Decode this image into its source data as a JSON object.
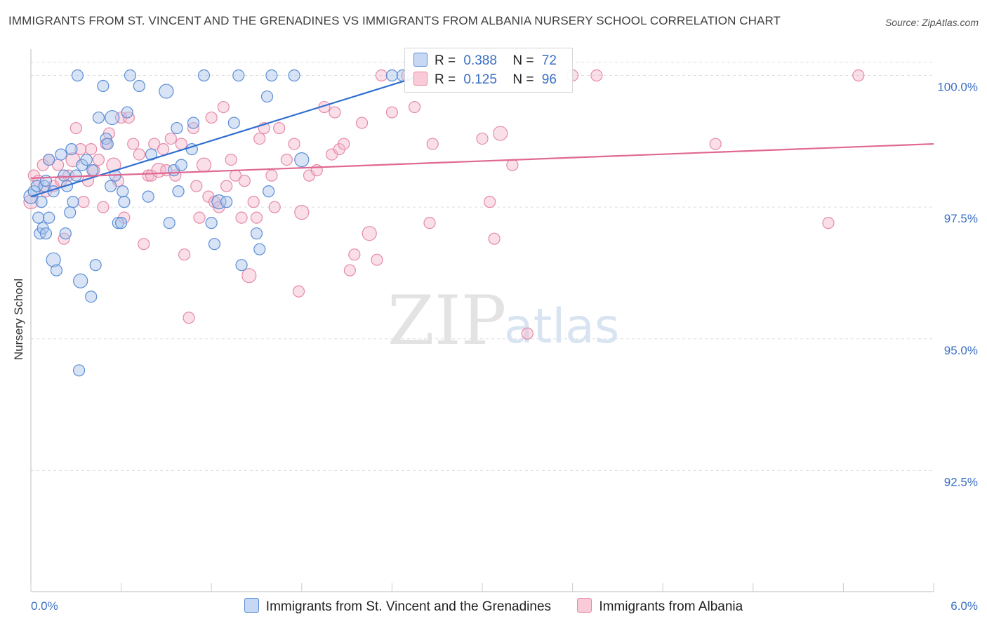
{
  "header": {
    "title": "IMMIGRANTS FROM ST. VINCENT AND THE GRENADINES VS IMMIGRANTS FROM ALBANIA NURSERY SCHOOL CORRELATION CHART",
    "source": "Source: ZipAtlas.com"
  },
  "watermark": {
    "zip": "ZIP",
    "atlas": "atlas"
  },
  "colors": {
    "blue_fill": "#a9c4ec",
    "blue_stroke": "#5b8dd6",
    "blue_line": "#2f6fd0",
    "pink_fill": "#f5b8cc",
    "pink_stroke": "#e58aa8",
    "pink_line": "#e06892",
    "tick_text": "#3a6fc4",
    "grid": "#dddddd"
  },
  "legend_top": {
    "rows": [
      {
        "r_label": "R =",
        "r_value": "0.388",
        "n_label": "N =",
        "n_value": "72"
      },
      {
        "r_label": "R =",
        "r_value": "0.125",
        "n_label": "N =",
        "n_value": "96"
      }
    ]
  },
  "chart_data": {
    "type": "scatter",
    "title": "IMMIGRANTS FROM ST. VINCENT AND THE GRENADINES VS IMMIGRANTS FROM ALBANIA NURSERY SCHOOL CORRELATION CHART",
    "xlabel": "",
    "ylabel": "Nursery School",
    "xlim": [
      0,
      6
    ],
    "ylim": [
      90.2,
      100.5
    ],
    "x_tick_labels": [
      "0.0%",
      "6.0%"
    ],
    "y_ticks": [
      92.5,
      95.0,
      97.5,
      100.0
    ],
    "y_tick_labels": [
      "92.5%",
      "95.0%",
      "97.5%",
      "100.0%"
    ],
    "grid": true,
    "legend_position": "bottom",
    "series": [
      {
        "name": "Immigrants from St. Vincent and the Grenadines",
        "color": "#a9c4ec",
        "r": 0.388,
        "n": 72,
        "trend": [
          [
            0.0,
            97.7
          ],
          [
            2.6,
            100.0
          ]
        ],
        "points": [
          [
            0.0,
            97.7
          ],
          [
            0.02,
            97.8
          ],
          [
            0.04,
            97.9
          ],
          [
            0.05,
            97.3
          ],
          [
            0.06,
            97.0
          ],
          [
            0.08,
            97.1
          ],
          [
            0.09,
            97.9
          ],
          [
            0.1,
            98.0
          ],
          [
            0.12,
            98.4
          ],
          [
            0.12,
            97.3
          ],
          [
            0.15,
            97.8
          ],
          [
            0.15,
            96.5
          ],
          [
            0.17,
            96.3
          ],
          [
            0.2,
            98.5
          ],
          [
            0.22,
            98.1
          ],
          [
            0.23,
            97.0
          ],
          [
            0.24,
            97.9
          ],
          [
            0.26,
            97.4
          ],
          [
            0.27,
            98.6
          ],
          [
            0.28,
            97.6
          ],
          [
            0.3,
            98.1
          ],
          [
            0.31,
            100.0
          ],
          [
            0.33,
            96.1
          ],
          [
            0.34,
            98.3
          ],
          [
            0.37,
            98.4
          ],
          [
            0.4,
            95.8
          ],
          [
            0.41,
            98.2
          ],
          [
            0.43,
            96.4
          ],
          [
            0.45,
            99.2
          ],
          [
            0.48,
            99.8
          ],
          [
            0.5,
            98.8
          ],
          [
            0.51,
            98.7
          ],
          [
            0.53,
            97.9
          ],
          [
            0.54,
            99.2
          ],
          [
            0.56,
            98.1
          ],
          [
            0.58,
            97.2
          ],
          [
            0.6,
            97.2
          ],
          [
            0.61,
            97.8
          ],
          [
            0.62,
            97.6
          ],
          [
            0.64,
            99.3
          ],
          [
            0.66,
            100.0
          ],
          [
            0.72,
            99.8
          ],
          [
            0.78,
            97.7
          ],
          [
            0.8,
            98.5
          ],
          [
            0.9,
            99.7
          ],
          [
            0.92,
            97.2
          ],
          [
            0.95,
            98.2
          ],
          [
            0.97,
            99.0
          ],
          [
            0.98,
            97.8
          ],
          [
            1.0,
            98.3
          ],
          [
            1.07,
            98.6
          ],
          [
            1.08,
            99.1
          ],
          [
            1.15,
            100.0
          ],
          [
            1.2,
            97.2
          ],
          [
            1.22,
            96.8
          ],
          [
            1.25,
            97.6
          ],
          [
            1.3,
            97.6
          ],
          [
            1.35,
            99.1
          ],
          [
            1.38,
            100.0
          ],
          [
            1.4,
            96.4
          ],
          [
            1.5,
            97.0
          ],
          [
            1.52,
            96.7
          ],
          [
            1.57,
            99.6
          ],
          [
            1.6,
            100.0
          ],
          [
            1.58,
            97.8
          ],
          [
            1.75,
            100.0
          ],
          [
            1.8,
            98.4
          ],
          [
            2.4,
            100.0
          ],
          [
            2.47,
            100.0
          ],
          [
            0.32,
            94.4
          ],
          [
            0.07,
            97.6
          ],
          [
            0.1,
            97.0
          ]
        ]
      },
      {
        "name": "Immigrants from Albania",
        "color": "#f5b8cc",
        "r": 0.125,
        "n": 96,
        "trend": [
          [
            0.0,
            98.05
          ],
          [
            6.0,
            98.7
          ]
        ],
        "points": [
          [
            0.0,
            97.6
          ],
          [
            0.02,
            98.1
          ],
          [
            0.05,
            98.0
          ],
          [
            0.08,
            98.3
          ],
          [
            0.1,
            97.8
          ],
          [
            0.12,
            98.4
          ],
          [
            0.15,
            97.9
          ],
          [
            0.18,
            98.3
          ],
          [
            0.2,
            98.0
          ],
          [
            0.22,
            96.9
          ],
          [
            0.25,
            98.1
          ],
          [
            0.28,
            98.4
          ],
          [
            0.3,
            99.0
          ],
          [
            0.33,
            98.6
          ],
          [
            0.35,
            97.6
          ],
          [
            0.38,
            98.0
          ],
          [
            0.4,
            98.6
          ],
          [
            0.42,
            98.2
          ],
          [
            0.45,
            98.4
          ],
          [
            0.48,
            97.5
          ],
          [
            0.5,
            98.7
          ],
          [
            0.52,
            98.9
          ],
          [
            0.55,
            98.3
          ],
          [
            0.58,
            98.0
          ],
          [
            0.6,
            99.2
          ],
          [
            0.62,
            97.3
          ],
          [
            0.65,
            99.2
          ],
          [
            0.68,
            98.7
          ],
          [
            0.72,
            98.5
          ],
          [
            0.75,
            96.8
          ],
          [
            0.78,
            98.1
          ],
          [
            0.8,
            98.1
          ],
          [
            0.82,
            98.7
          ],
          [
            0.85,
            98.2
          ],
          [
            0.88,
            98.6
          ],
          [
            0.9,
            98.2
          ],
          [
            0.93,
            98.8
          ],
          [
            0.96,
            98.1
          ],
          [
            1.0,
            98.7
          ],
          [
            1.02,
            96.6
          ],
          [
            1.05,
            95.4
          ],
          [
            1.08,
            99.0
          ],
          [
            1.1,
            97.9
          ],
          [
            1.12,
            97.3
          ],
          [
            1.15,
            98.3
          ],
          [
            1.18,
            97.7
          ],
          [
            1.2,
            99.2
          ],
          [
            1.22,
            97.6
          ],
          [
            1.25,
            97.5
          ],
          [
            1.28,
            99.4
          ],
          [
            1.3,
            97.9
          ],
          [
            1.33,
            98.4
          ],
          [
            1.36,
            98.1
          ],
          [
            1.4,
            97.3
          ],
          [
            1.42,
            98.0
          ],
          [
            1.45,
            96.2
          ],
          [
            1.48,
            97.6
          ],
          [
            1.5,
            97.3
          ],
          [
            1.52,
            98.8
          ],
          [
            1.55,
            99.0
          ],
          [
            1.6,
            98.1
          ],
          [
            1.62,
            97.5
          ],
          [
            1.65,
            99.0
          ],
          [
            1.7,
            98.4
          ],
          [
            1.75,
            98.7
          ],
          [
            1.78,
            95.9
          ],
          [
            1.8,
            97.4
          ],
          [
            1.85,
            98.1
          ],
          [
            1.9,
            98.2
          ],
          [
            1.95,
            99.4
          ],
          [
            2.0,
            98.5
          ],
          [
            2.02,
            99.3
          ],
          [
            2.05,
            98.6
          ],
          [
            2.08,
            98.7
          ],
          [
            2.12,
            96.3
          ],
          [
            2.15,
            96.6
          ],
          [
            2.2,
            99.1
          ],
          [
            2.25,
            97.0
          ],
          [
            2.3,
            96.5
          ],
          [
            2.33,
            100.0
          ],
          [
            2.4,
            99.3
          ],
          [
            2.5,
            100.0
          ],
          [
            2.55,
            99.4
          ],
          [
            2.65,
            97.2
          ],
          [
            2.67,
            98.7
          ],
          [
            3.0,
            98.8
          ],
          [
            3.05,
            97.6
          ],
          [
            3.08,
            96.9
          ],
          [
            3.12,
            98.9
          ],
          [
            3.2,
            98.3
          ],
          [
            3.3,
            95.1
          ],
          [
            3.6,
            100.0
          ],
          [
            3.76,
            100.0
          ],
          [
            4.55,
            98.7
          ],
          [
            5.3,
            97.2
          ],
          [
            5.5,
            100.0
          ]
        ]
      }
    ]
  }
}
